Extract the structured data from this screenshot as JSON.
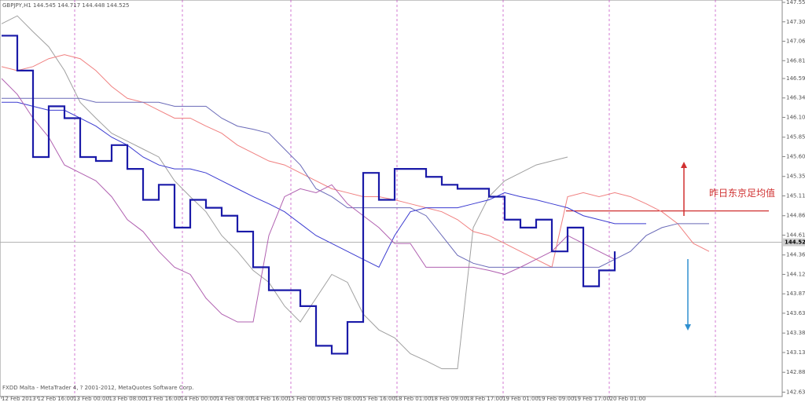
{
  "chart_data": {
    "type": "line",
    "title": "GBPJPY,H1  144.545 144.717 144.448 144.525",
    "footer": "FXDD Malta - MetaTrader 4, ? 2001-2012, MetaQuotes Software Corp.",
    "xtick_labels": [
      "12 Feb 2013",
      "12 Feb 16:00",
      "13 Feb 00:00",
      "13 Feb 08:00",
      "13 Feb 16:00",
      "14 Feb 00:00",
      "14 Feb 08:00",
      "14 Feb 16:00",
      "15 Feb 00:00",
      "15 Feb 08:00",
      "15 Feb 16:00",
      "18 Feb 01:00",
      "18 Feb 09:00",
      "18 Feb 17:00",
      "19 Feb 01:00",
      "19 Feb 09:00",
      "19 Feb 17:00",
      "20 Feb 01:00"
    ],
    "ylim": [
      142.58,
      147.58
    ],
    "yticks": [
      {
        "value": 147.55,
        "label": "147.550"
      },
      {
        "value": 147.305,
        "label": "147.305"
      },
      {
        "value": 147.06,
        "label": "147.060"
      },
      {
        "value": 146.815,
        "label": "146.815"
      },
      {
        "value": 146.59,
        "label": "146.590"
      },
      {
        "value": 146.345,
        "label": "146.345"
      },
      {
        "value": 146.1,
        "label": "146.100"
      },
      {
        "value": 145.85,
        "label": "145.850"
      },
      {
        "value": 145.605,
        "label": "145.605"
      },
      {
        "value": 145.355,
        "label": "145.355"
      },
      {
        "value": 145.11,
        "label": "145.110"
      },
      {
        "value": 144.86,
        "label": "144.860"
      },
      {
        "value": 144.615,
        "label": "144.615"
      },
      {
        "value": 144.365,
        "label": "144.365"
      },
      {
        "value": 144.12,
        "label": "144.120"
      },
      {
        "value": 143.875,
        "label": "143.875"
      },
      {
        "value": 143.63,
        "label": "143.630"
      },
      {
        "value": 143.38,
        "label": "143.380"
      },
      {
        "value": 143.135,
        "label": "143.135"
      },
      {
        "value": 142.885,
        "label": "142.885"
      },
      {
        "value": 142.635,
        "label": "142.635"
      }
    ],
    "current_price": 144.525,
    "annotation": {
      "text": "昨日东京足均值",
      "value": 144.92
    },
    "series": [
      {
        "color": "#a0a0a0",
        "width": 1,
        "values": [
          147.28,
          147.38,
          147.18,
          146.99,
          146.69,
          146.29,
          146.09,
          145.9,
          145.8,
          145.7,
          145.6,
          145.3,
          145.1,
          144.91,
          144.61,
          144.41,
          144.17,
          144.02,
          143.72,
          143.52,
          143.82,
          144.12,
          144.02,
          143.62,
          143.42,
          143.32,
          143.12,
          143.03,
          142.93,
          142.93,
          144.71,
          145.1,
          145.3,
          145.4,
          145.5,
          145.55,
          145.6,
          null,
          null,
          null,
          null,
          null,
          null,
          null,
          null,
          null
        ]
      },
      {
        "color": "#f08080",
        "width": 1,
        "values": [
          146.74,
          146.69,
          146.74,
          146.84,
          146.89,
          146.84,
          146.69,
          146.49,
          146.34,
          146.29,
          146.19,
          146.09,
          146.09,
          145.99,
          145.9,
          145.75,
          145.65,
          145.55,
          145.5,
          145.4,
          145.3,
          145.2,
          145.15,
          145.1,
          145.1,
          145.06,
          145.01,
          144.96,
          144.91,
          144.81,
          144.66,
          144.61,
          144.51,
          144.41,
          144.31,
          144.21,
          145.1,
          145.15,
          145.1,
          145.15,
          145.1,
          145.01,
          144.91,
          144.76,
          144.51,
          144.41
        ]
      },
      {
        "color": "#6a6ab8",
        "width": 1,
        "values": [
          146.34,
          146.34,
          146.34,
          146.34,
          146.34,
          146.34,
          146.29,
          146.29,
          146.29,
          146.29,
          146.29,
          146.24,
          146.24,
          146.24,
          146.09,
          145.99,
          145.95,
          145.9,
          145.7,
          145.5,
          145.2,
          145.1,
          144.96,
          144.96,
          144.96,
          144.96,
          144.96,
          144.86,
          144.61,
          144.36,
          144.26,
          144.21,
          144.21,
          144.21,
          144.21,
          144.21,
          144.21,
          144.21,
          144.21,
          144.31,
          144.41,
          144.61,
          144.71,
          144.76,
          144.76,
          144.76
        ]
      },
      {
        "color": "#3b3bd0",
        "width": 1,
        "values": [
          146.29,
          146.29,
          146.24,
          146.19,
          146.19,
          146.09,
          145.99,
          145.85,
          145.75,
          145.6,
          145.5,
          145.45,
          145.45,
          145.4,
          145.3,
          145.2,
          145.1,
          145.01,
          144.91,
          144.76,
          144.61,
          144.51,
          144.41,
          144.31,
          144.21,
          144.61,
          144.91,
          144.96,
          144.96,
          144.96,
          145.01,
          145.06,
          145.15,
          145.1,
          145.06,
          145.01,
          144.96,
          144.86,
          144.81,
          144.76,
          144.76,
          144.76,
          null,
          null,
          null,
          null
        ]
      },
      {
        "color": "#b060b0",
        "width": 1,
        "values": [
          146.59,
          146.39,
          146.09,
          145.85,
          145.5,
          145.4,
          145.3,
          145.1,
          144.81,
          144.66,
          144.41,
          144.21,
          144.12,
          143.82,
          143.62,
          143.52,
          143.52,
          144.61,
          145.1,
          145.2,
          145.15,
          145.25,
          145.01,
          144.86,
          144.71,
          144.51,
          144.51,
          144.21,
          144.21,
          144.21,
          144.21,
          144.17,
          144.12,
          144.21,
          144.31,
          144.41,
          144.61,
          144.51,
          144.41,
          144.31,
          null,
          null,
          null,
          null,
          null,
          null
        ]
      },
      {
        "color": "#1a1aa8",
        "width": 2.2,
        "step": true,
        "values": [
          147.13,
          146.69,
          145.6,
          146.24,
          146.09,
          145.6,
          145.55,
          145.75,
          145.45,
          145.06,
          145.25,
          144.71,
          145.06,
          144.96,
          144.86,
          144.66,
          144.21,
          143.92,
          143.92,
          143.72,
          143.22,
          143.12,
          143.52,
          145.4,
          145.06,
          145.45,
          145.45,
          145.35,
          145.25,
          145.2,
          145.2,
          145.1,
          144.81,
          144.71,
          144.81,
          144.41,
          144.71,
          143.97,
          144.17,
          144.41,
          null,
          null,
          null,
          null,
          null,
          null
        ]
      }
    ]
  }
}
